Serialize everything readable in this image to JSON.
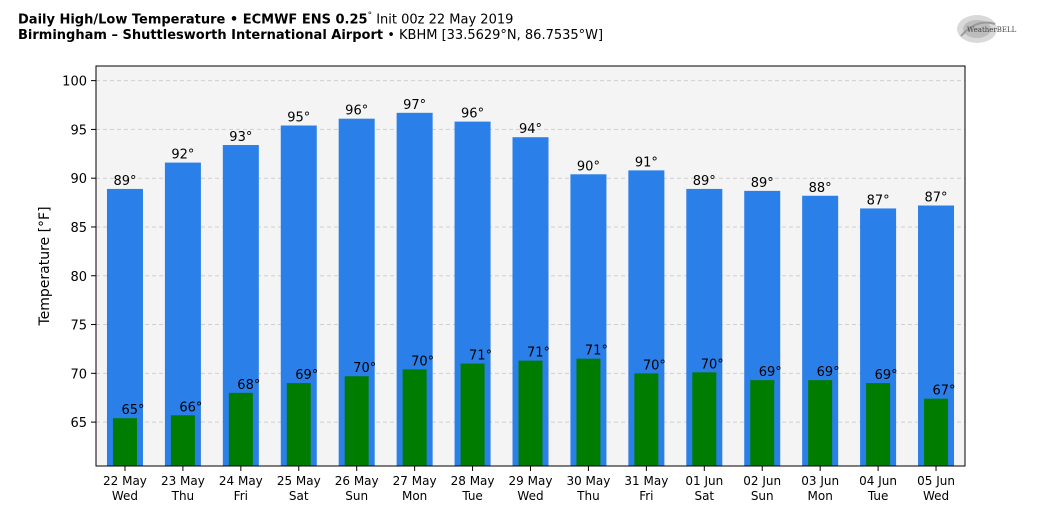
{
  "header": {
    "line1_bold": "Daily High/Low Temperature • ECMWF ENS 0.25",
    "line1_deg": "°",
    "line1_rest": " Init 00z 22 May 2019",
    "line2_bold": "Birmingham – Shuttlesworth International Airport",
    "line2_rest": " • KBHM [33.5629°N, 86.7535°W]"
  },
  "logo": {
    "text": "WeatherBELL",
    "icon": "weatherbell-logo-icon"
  },
  "colors": {
    "high": "#2b7fe8",
    "low": "#007d00",
    "plot_bg": "#f4f4f4",
    "grid": "#d0d0d0"
  },
  "chart_data": {
    "type": "bar",
    "title": "Daily High/Low Temperature • ECMWF ENS 0.25° Init 00z 22 May 2019",
    "ylabel": "Temperature [°F]",
    "xlabel": "",
    "ylim": [
      60.5,
      101.5
    ],
    "yticks": [
      65,
      70,
      75,
      80,
      85,
      90,
      95,
      100
    ],
    "grid": true,
    "categories": [
      {
        "date": "22 May",
        "day": "Wed"
      },
      {
        "date": "23 May",
        "day": "Thu"
      },
      {
        "date": "24 May",
        "day": "Fri"
      },
      {
        "date": "25 May",
        "day": "Sat"
      },
      {
        "date": "26 May",
        "day": "Sun"
      },
      {
        "date": "27 May",
        "day": "Mon"
      },
      {
        "date": "28 May",
        "day": "Tue"
      },
      {
        "date": "29 May",
        "day": "Wed"
      },
      {
        "date": "30 May",
        "day": "Thu"
      },
      {
        "date": "31 May",
        "day": "Fri"
      },
      {
        "date": "01 Jun",
        "day": "Sat"
      },
      {
        "date": "02 Jun",
        "day": "Sun"
      },
      {
        "date": "03 Jun",
        "day": "Mon"
      },
      {
        "date": "04 Jun",
        "day": "Tue"
      },
      {
        "date": "05 Jun",
        "day": "Wed"
      }
    ],
    "series": [
      {
        "key": "high",
        "values": [
          88.9,
          91.6,
          93.4,
          95.4,
          96.1,
          96.7,
          95.8,
          94.2,
          90.4,
          90.8,
          88.9,
          88.7,
          88.2,
          86.9,
          87.2
        ],
        "labels": [
          "89°",
          "92°",
          "93°",
          "95°",
          "96°",
          "97°",
          "96°",
          "94°",
          "90°",
          "91°",
          "89°",
          "89°",
          "88°",
          "87°",
          "87°"
        ]
      },
      {
        "key": "low",
        "values": [
          65.4,
          65.7,
          68.0,
          69.0,
          69.7,
          70.4,
          71.0,
          71.3,
          71.5,
          70.0,
          70.1,
          69.3,
          69.3,
          69.0,
          67.4
        ],
        "labels": [
          "65°",
          "66°",
          "68°",
          "69°",
          "70°",
          "70°",
          "71°",
          "71°",
          "71°",
          "70°",
          "70°",
          "69°",
          "69°",
          "69°",
          "67°"
        ]
      }
    ]
  }
}
